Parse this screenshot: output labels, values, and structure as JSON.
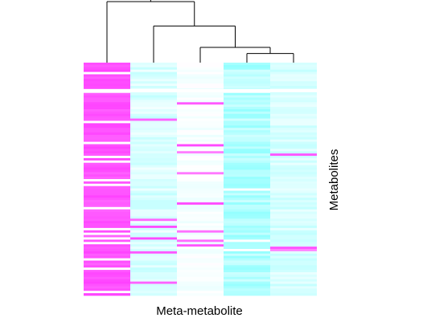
{
  "chart_data": {
    "type": "heatmap",
    "xlabel": "Meta-metabolite",
    "ylabel": "Metabolites",
    "n_columns": 5,
    "n_rows": 100,
    "column_order": [
      1,
      2,
      3,
      4,
      5
    ],
    "color_scale": {
      "low": "#33ffff",
      "mid": "#ffffff",
      "high": "#ff33ff"
    },
    "value_range": [
      -1,
      1
    ],
    "dendrogram": {
      "merges": [
        {
          "left": 4,
          "right": 5,
          "height": 0.15
        },
        {
          "left": 3,
          "right": "4-5",
          "height": 0.25
        },
        {
          "left": 2,
          "right": "3-4-5",
          "height": 0.6
        },
        {
          "left": 1,
          "right": "2-3-4-5",
          "height": 1.0
        }
      ]
    },
    "columns": [
      {
        "id": 1,
        "base": 0.85,
        "noise": 0.08,
        "white_rows": [
          4,
          12,
          25,
          34,
          40,
          42,
          50,
          52,
          62,
          71,
          73,
          75,
          77,
          84,
          88,
          98
        ]
      },
      {
        "id": 2,
        "base": -0.18,
        "noise": 0.12,
        "magenta_rows": [
          24,
          67,
          70,
          75,
          81,
          94
        ]
      },
      {
        "id": 3,
        "base": -0.04,
        "noise": 0.06,
        "magenta_rows": [
          17,
          35,
          38,
          47,
          60,
          72,
          76,
          78
        ]
      },
      {
        "id": 4,
        "base": -0.38,
        "noise": 0.15,
        "white_rows": [
          12,
          54,
          76,
          80
        ]
      },
      {
        "id": 5,
        "base": -0.2,
        "noise": 0.1,
        "magenta_rows": [
          39,
          79,
          80
        ]
      }
    ],
    "colors": {
      "dendrogram": "#000000",
      "gap": "#ffffff"
    }
  }
}
